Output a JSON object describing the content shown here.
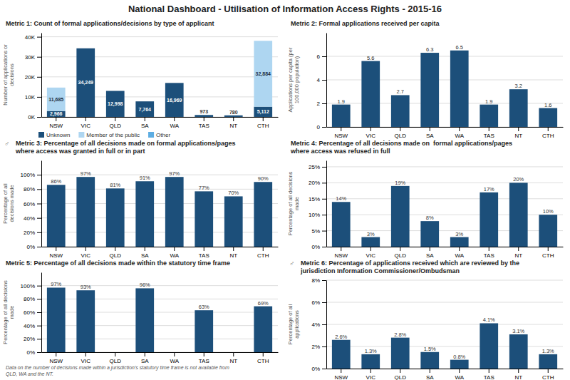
{
  "title": "National Dashboard - Utilisation of Information Access Rights - 2015-16",
  "chart_data": [
    {
      "type": "bar",
      "title": "Metric 1: Count of formal applications/decisions by type of applicant",
      "ylabel": "Number of applications or\ndecisions",
      "categories": [
        "NSW",
        "VIC",
        "QLD",
        "SA",
        "WA",
        "TAS",
        "NT",
        "CTH"
      ],
      "stacked": true,
      "series": [
        {
          "name": "Unknown",
          "color": "#1c4f7a",
          "values": [
            2966,
            34249,
            12998,
            7764,
            16969,
            973,
            780,
            5112
          ],
          "value_labels": [
            "2,966",
            "34,249",
            "12,998",
            "7,764",
            "16,969",
            "973",
            "780",
            "5,112"
          ]
        },
        {
          "name": "Member of the public",
          "color": "#aed6f1",
          "values": [
            11685,
            0,
            0,
            0,
            0,
            0,
            0,
            32884
          ],
          "value_labels": [
            "11,685",
            null,
            null,
            null,
            null,
            null,
            null,
            "32,884"
          ]
        },
        {
          "name": "Other",
          "color": "#5dade2",
          "values": [
            null,
            null,
            null,
            null,
            null,
            null,
            null,
            null
          ]
        }
      ],
      "ylim": [
        0,
        42000
      ],
      "yticks": [
        {
          "value": 0,
          "label": "0K"
        },
        {
          "value": 10000,
          "label": "10K"
        },
        {
          "value": 20000,
          "label": "20K"
        },
        {
          "value": 30000,
          "label": "30K"
        },
        {
          "value": 40000,
          "label": "40K"
        }
      ],
      "grid": true,
      "legend": "bottom"
    },
    {
      "type": "bar",
      "title": "Metric 2: Formal applications received per capita",
      "ylabel": "Applications per capita (per\n100,000 population)",
      "categories": [
        "NSW",
        "VIC",
        "QLD",
        "SA",
        "WA",
        "TAS",
        "NT",
        "CTH"
      ],
      "values": [
        1.9,
        5.6,
        2.7,
        6.3,
        6.5,
        1.9,
        3.2,
        1.6
      ],
      "data_labels": true,
      "color": "#1c4f7a",
      "ylim": [
        0,
        8
      ],
      "yticks": [
        0,
        2,
        4,
        6
      ],
      "grid": true
    },
    {
      "type": "bar",
      "title": "Metric 3: Percentage of all decisions made on formal applications/pages\nwhere access was granted in full or in part",
      "ylabel": "Percentage of all\ndecisions made",
      "annotations": [
        "♂"
      ],
      "categories": [
        "NSW",
        "VIC",
        "QLD",
        "SA",
        "WA",
        "TAS",
        "NT",
        "CTH"
      ],
      "values": [
        86,
        97,
        81,
        91,
        97,
        77,
        70,
        90
      ],
      "value_labels": [
        "86%",
        "97%",
        "81%",
        "91%",
        "97%",
        "77%",
        "70%",
        "90%"
      ],
      "color": "#1c4f7a",
      "ylim": [
        0,
        120
      ],
      "yticks": [
        {
          "value": 0,
          "label": "0%"
        },
        {
          "value": 20,
          "label": "20%"
        },
        {
          "value": 40,
          "label": "40%"
        },
        {
          "value": 60,
          "label": "60%"
        },
        {
          "value": 80,
          "label": "80%"
        },
        {
          "value": 100,
          "label": "100%"
        }
      ],
      "grid": true
    },
    {
      "type": "bar",
      "title": "Metric 4: Percentage of all decisions made on  formal applications/pages\nwhere access was refused in full",
      "ylabel": "Percentage of all decisions\nmade",
      "categories": [
        "NSW",
        "VIC",
        "QLD",
        "SA",
        "WA",
        "TAS",
        "NT",
        "CTH"
      ],
      "values": [
        14,
        3,
        19,
        8,
        3,
        17,
        20,
        10
      ],
      "value_labels": [
        "14%",
        "3%",
        "19%",
        "8%",
        "3%",
        "17%",
        "20%",
        "10%"
      ],
      "color": "#1c4f7a",
      "ylim": [
        0,
        27
      ],
      "yticks": [
        {
          "value": 0,
          "label": "0%"
        },
        {
          "value": 5,
          "label": "5%"
        },
        {
          "value": 10,
          "label": "10%"
        },
        {
          "value": 15,
          "label": "15%"
        },
        {
          "value": 20,
          "label": "20%"
        },
        {
          "value": 25,
          "label": "25%"
        }
      ],
      "grid": true
    },
    {
      "type": "bar",
      "title": "Metric 5: Percentage of all decisions made within the statutory time frame",
      "ylabel": "Percentage of all decisions\nmade",
      "categories": [
        "NSW",
        "VIC",
        "QLD",
        "SA",
        "WA",
        "TAS",
        "NT",
        "CTH"
      ],
      "values": [
        97,
        93,
        0,
        96,
        0,
        63,
        0,
        69
      ],
      "value_labels": [
        "97%",
        "93%",
        null,
        "96%",
        null,
        "63%",
        null,
        "69%"
      ],
      "color": "#1c4f7a",
      "ylim": [
        0,
        120
      ],
      "yticks": [
        {
          "value": 0,
          "label": "0%"
        },
        {
          "value": 20,
          "label": "20%"
        },
        {
          "value": 40,
          "label": "40%"
        },
        {
          "value": 60,
          "label": "60%"
        },
        {
          "value": 80,
          "label": "80%"
        },
        {
          "value": 100,
          "label": "100%"
        }
      ],
      "grid": true,
      "footnote": "Data on the number of decisions made within a jurisdiction's statutory time frame is not available from\nQLD, WA and the NT."
    },
    {
      "type": "bar",
      "title": "Metric 6: Percentage of applications received which are reviewed by the\njurisdiction Information Commissioner/Ombudsman",
      "ylabel": "Percentage of all\napplications",
      "annotations": [
        "♂"
      ],
      "categories": [
        "NSW",
        "VIC",
        "QLD",
        "SA",
        "WA",
        "TAS",
        "NT",
        "CTH"
      ],
      "values": [
        2.6,
        1.3,
        2.8,
        1.5,
        0.8,
        4.1,
        3.1,
        1.3
      ],
      "value_labels": [
        "2.6%",
        "1.3%",
        "2.8%",
        "1.5%",
        "0.8%",
        "4.1%",
        "3.1%",
        "1.3%"
      ],
      "color": "#1c4f7a",
      "ylim": [
        0,
        8
      ],
      "yticks": [
        {
          "value": 0,
          "label": "0%"
        },
        {
          "value": 2,
          "label": "2%"
        },
        {
          "value": 4,
          "label": "4%"
        },
        {
          "value": 6,
          "label": "6%"
        },
        {
          "value": 8,
          "label": "8%"
        }
      ],
      "grid": true
    }
  ]
}
